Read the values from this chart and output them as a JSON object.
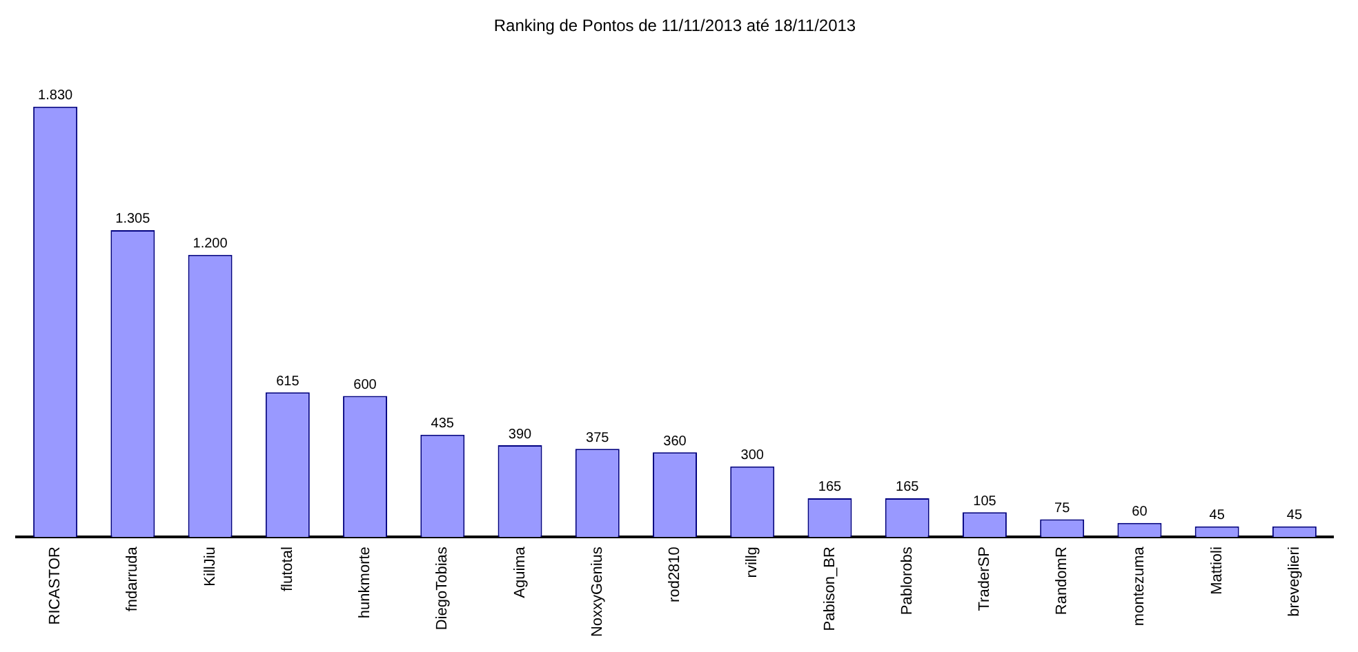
{
  "chart_data": {
    "type": "bar",
    "title": "Ranking de Pontos de 11/11/2013 até 18/11/2013",
    "categories": [
      "RICASTOR",
      "fndarruda",
      "KillJiu",
      "flutotal",
      "hunkmorte",
      "DiegoTobias",
      "Aguima",
      "NoxxyGenius",
      "rod2810",
      "rvillg",
      "Pabison_BR",
      "Pablorobs",
      "TraderSP",
      "RandomR",
      "montezuma",
      "Mattioli",
      "breveglieri"
    ],
    "values": [
      1830,
      1305,
      1200,
      615,
      600,
      435,
      390,
      375,
      360,
      300,
      165,
      165,
      105,
      75,
      60,
      45,
      45
    ],
    "value_labels": [
      "1.830",
      "1.305",
      "1.200",
      "615",
      "600",
      "435",
      "390",
      "375",
      "360",
      "300",
      "165",
      "165",
      "105",
      "75",
      "60",
      "45",
      "45"
    ],
    "color": "#9999ff",
    "grid": false,
    "legend": false
  }
}
